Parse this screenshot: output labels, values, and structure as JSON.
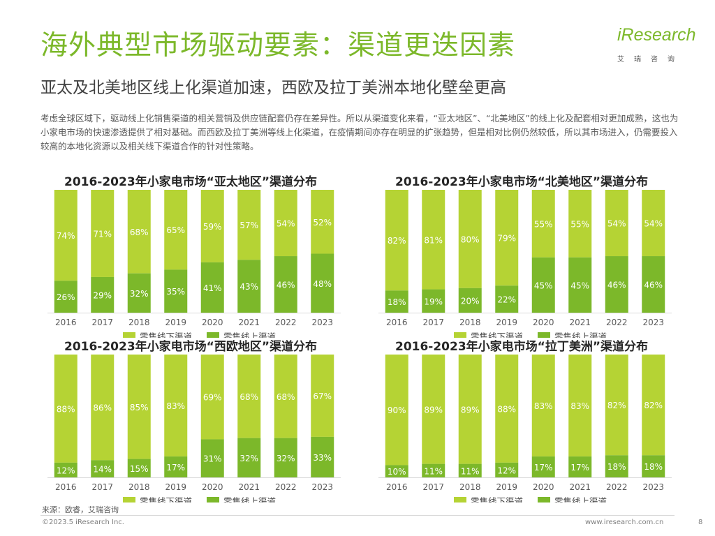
{
  "header": {
    "title": "海外典型市场驱动要素：渠道更迭因素",
    "subtitle": "亚太及北美地区线上化渠道加速，西欧及拉丁美洲本地化壁垒更高",
    "description": "考虑全球区域下，驱动线上化销售渠道的相关营销及供应链配套仍存在差异性。所以从渠道变化来看，“亚太地区”、“北美地区”的线上化及配套相对更加成熟，这也为小家电市场的快速渗透提供了相对基础。而西欧及拉丁美洲等线上化渠道，在疫情期间亦存在明显的扩张趋势，但是相对比例仍然较低，所以其市场进入，仍需要投入较高的本地化资源以及相关线下渠道合作的针对性策略。"
  },
  "logo": {
    "word": "iResearch",
    "cn": "艾瑞咨询"
  },
  "colors": {
    "offline": "#b5d334",
    "online": "#7cb82a",
    "brand": "#7cb82a"
  },
  "chart_data": [
    {
      "type": "bar",
      "stacked": true,
      "title": "2016-2023年小家电市场“亚太地区”渠道分布",
      "categories": [
        "2016",
        "2017",
        "2018",
        "2019",
        "2020",
        "2021",
        "2022",
        "2023"
      ],
      "series": [
        {
          "name": "零售线下渠道",
          "values": [
            74,
            71,
            68,
            65,
            59,
            57,
            54,
            52
          ]
        },
        {
          "name": "零售线上渠道",
          "values": [
            26,
            29,
            32,
            35,
            41,
            43,
            46,
            48
          ]
        }
      ],
      "value_suffix": "%",
      "ylim": [
        0,
        100
      ]
    },
    {
      "type": "bar",
      "stacked": true,
      "title": "2016-2023年小家电市场“北美地区”渠道分布",
      "categories": [
        "2016",
        "2017",
        "2018",
        "2019",
        "2020",
        "2021",
        "2022",
        "2023"
      ],
      "series": [
        {
          "name": "零售线下渠道",
          "values": [
            82,
            81,
            80,
            79,
            55,
            55,
            54,
            54
          ]
        },
        {
          "name": "零售线上渠道",
          "values": [
            18,
            19,
            20,
            22,
            45,
            45,
            46,
            46
          ]
        }
      ],
      "value_suffix": "%",
      "ylim": [
        0,
        100
      ]
    },
    {
      "type": "bar",
      "stacked": true,
      "title": "2016-2023年小家电市场“西欧地区”渠道分布",
      "categories": [
        "2016",
        "2017",
        "2018",
        "2019",
        "2020",
        "2021",
        "2022",
        "2023"
      ],
      "series": [
        {
          "name": "零售线下渠道",
          "values": [
            88,
            86,
            85,
            83,
            69,
            68,
            68,
            67
          ]
        },
        {
          "name": "零售线上渠道",
          "values": [
            12,
            14,
            15,
            17,
            31,
            32,
            32,
            33
          ]
        }
      ],
      "value_suffix": "%",
      "ylim": [
        0,
        100
      ]
    },
    {
      "type": "bar",
      "stacked": true,
      "title": "2016-2023年小家电市场“拉丁美洲”渠道分布",
      "categories": [
        "2016",
        "2017",
        "2018",
        "2019",
        "2020",
        "2021",
        "2022",
        "2023"
      ],
      "series": [
        {
          "name": "零售线下渠道",
          "values": [
            90,
            89,
            89,
            88,
            83,
            83,
            82,
            82
          ]
        },
        {
          "name": "零售线上渠道",
          "values": [
            10,
            11,
            11,
            12,
            17,
            17,
            18,
            18
          ]
        }
      ],
      "value_suffix": "%",
      "ylim": [
        0,
        100
      ]
    }
  ],
  "footer": {
    "source": "来源：欧睿，艾瑞咨询",
    "copyright": "©2023.5 iResearch Inc.",
    "website": "www.iresearch.com.cn",
    "page": "8"
  }
}
